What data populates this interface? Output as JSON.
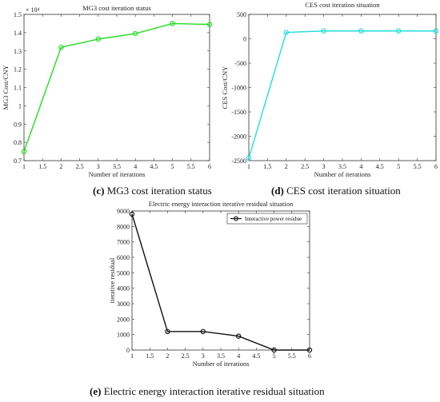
{
  "captions": {
    "c": {
      "label": "(c)",
      "text": "MG3 cost iteration status"
    },
    "d": {
      "label": "(d)",
      "text": "CES cost iteration situation"
    },
    "e": {
      "label": "(e)",
      "text": "Electric energy interaction iterative residual situation"
    }
  },
  "chart_data": [
    {
      "id": "c",
      "type": "line",
      "title": "MG3 cost iteration status",
      "xlabel": "Number of iterations",
      "ylabel": "MG3 Cost/CNY",
      "exponent_label": "× 10⁴",
      "xlim": [
        1,
        6
      ],
      "ylim": [
        0.7,
        1.5
      ],
      "xticks": [
        1,
        1.5,
        2,
        2.5,
        3,
        3.5,
        4,
        4.5,
        5,
        5.5,
        6
      ],
      "yticks": [
        0.7,
        0.8,
        0.9,
        1,
        1.1,
        1.2,
        1.3,
        1.4,
        1.5
      ],
      "ytick_labels": [
        "0.7",
        "0.8",
        "0.9",
        "1",
        "1.1",
        "1.2",
        "1.3",
        "1.4",
        "1.5"
      ],
      "color": "#22dd22",
      "series": [
        {
          "x": [
            1,
            2,
            3,
            4,
            5,
            6
          ],
          "y": [
            0.75,
            1.32,
            1.365,
            1.395,
            1.45,
            1.445
          ]
        }
      ]
    },
    {
      "id": "d",
      "type": "line",
      "title": "CES cost iteration situation",
      "xlabel": "Number of iterations",
      "ylabel": "CES Cost/CNY",
      "xlim": [
        1,
        6
      ],
      "ylim": [
        -2500,
        500
      ],
      "xticks": [
        1,
        1.5,
        2,
        2.5,
        3,
        3.5,
        4,
        4.5,
        5,
        5.5,
        6
      ],
      "yticks": [
        -2500,
        -2000,
        -1500,
        -1000,
        -500,
        0,
        500
      ],
      "ytick_labels": [
        "-2500",
        "-2000",
        "-1500",
        "-1000",
        "-500",
        "0",
        "500"
      ],
      "color": "#22dddd",
      "series": [
        {
          "x": [
            1,
            2,
            3,
            4,
            5,
            6
          ],
          "y": [
            -2450,
            130,
            160,
            160,
            160,
            160
          ]
        }
      ]
    },
    {
      "id": "e",
      "type": "line",
      "title": "Electric energy interaction iterative residual situation",
      "xlabel": "Number of iterations",
      "ylabel": "iterative residual",
      "xlim": [
        1,
        6
      ],
      "ylim": [
        0,
        9000
      ],
      "xticks": [
        1,
        1.5,
        2,
        2.5,
        3,
        3.5,
        4,
        4.5,
        5,
        5.5,
        6
      ],
      "yticks": [
        0,
        1000,
        2000,
        3000,
        4000,
        5000,
        6000,
        7000,
        8000,
        9000
      ],
      "ytick_labels": [
        "0",
        "1000",
        "2000",
        "3000",
        "4000",
        "5000",
        "6000",
        "7000",
        "8000",
        "9000"
      ],
      "color": "#111111",
      "legend": {
        "entries": [
          "Interactive power residue"
        ],
        "placement": "top-right"
      },
      "series": [
        {
          "name": "Interactive power residue",
          "x": [
            1,
            2,
            3,
            4,
            5,
            6
          ],
          "y": [
            8800,
            1200,
            1200,
            900,
            0,
            0
          ]
        }
      ]
    }
  ]
}
